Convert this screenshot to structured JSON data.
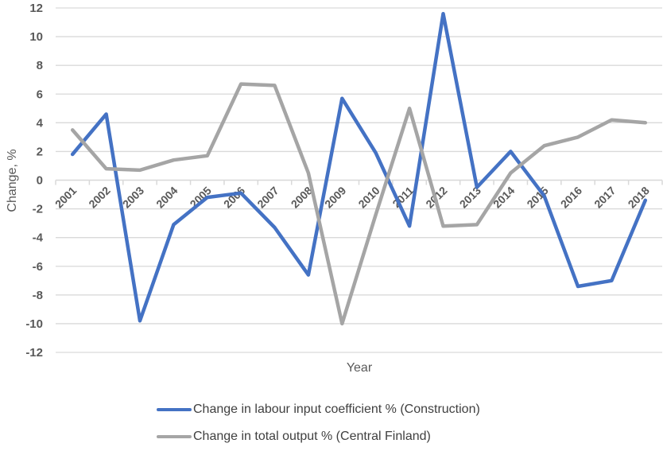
{
  "chart_data": {
    "type": "line",
    "title": "",
    "xlabel": "Year",
    "ylabel": "Change, %",
    "ylim": [
      -12,
      12
    ],
    "y_ticks": [
      12,
      10,
      8,
      6,
      4,
      2,
      0,
      -2,
      -4,
      -6,
      -8,
      -10,
      -12
    ],
    "grid": true,
    "legend_position": "bottom",
    "categories": [
      "2001",
      "2002",
      "2003",
      "2004",
      "2005",
      "2006",
      "2007",
      "2008",
      "2009",
      "2010",
      "2011",
      "2012",
      "2013",
      "2014",
      "2015",
      "2016",
      "2017",
      "2018"
    ],
    "series": [
      {
        "name": "Change in labour input coefficient % (Construction)",
        "color": "#4472C4",
        "values": [
          1.8,
          4.6,
          -9.8,
          -3.1,
          -1.2,
          -0.9,
          -3.3,
          -6.6,
          5.7,
          1.9,
          -3.2,
          11.6,
          -0.5,
          2.0,
          -1.1,
          -7.4,
          -7.0,
          -1.4
        ]
      },
      {
        "name": "Change in total output % (Central Finland)",
        "color": "#A5A5A5",
        "values": [
          3.5,
          0.8,
          0.7,
          1.4,
          1.7,
          6.7,
          6.6,
          0.5,
          -10.0,
          -2.4,
          5.0,
          -3.2,
          -3.1,
          0.5,
          2.4,
          3.0,
          4.2,
          4.0
        ]
      }
    ]
  },
  "axes": {
    "x_title": "Year",
    "y_title": "Change, %"
  },
  "legend": {
    "items": [
      {
        "label": "Change in labour input coefficient % (Construction)",
        "color": "#4472C4"
      },
      {
        "label": "Change in total output % (Central Finland)",
        "color": "#A5A5A5"
      }
    ]
  },
  "style": {
    "grid_color": "#D9D9D9",
    "text_color": "#595959"
  }
}
